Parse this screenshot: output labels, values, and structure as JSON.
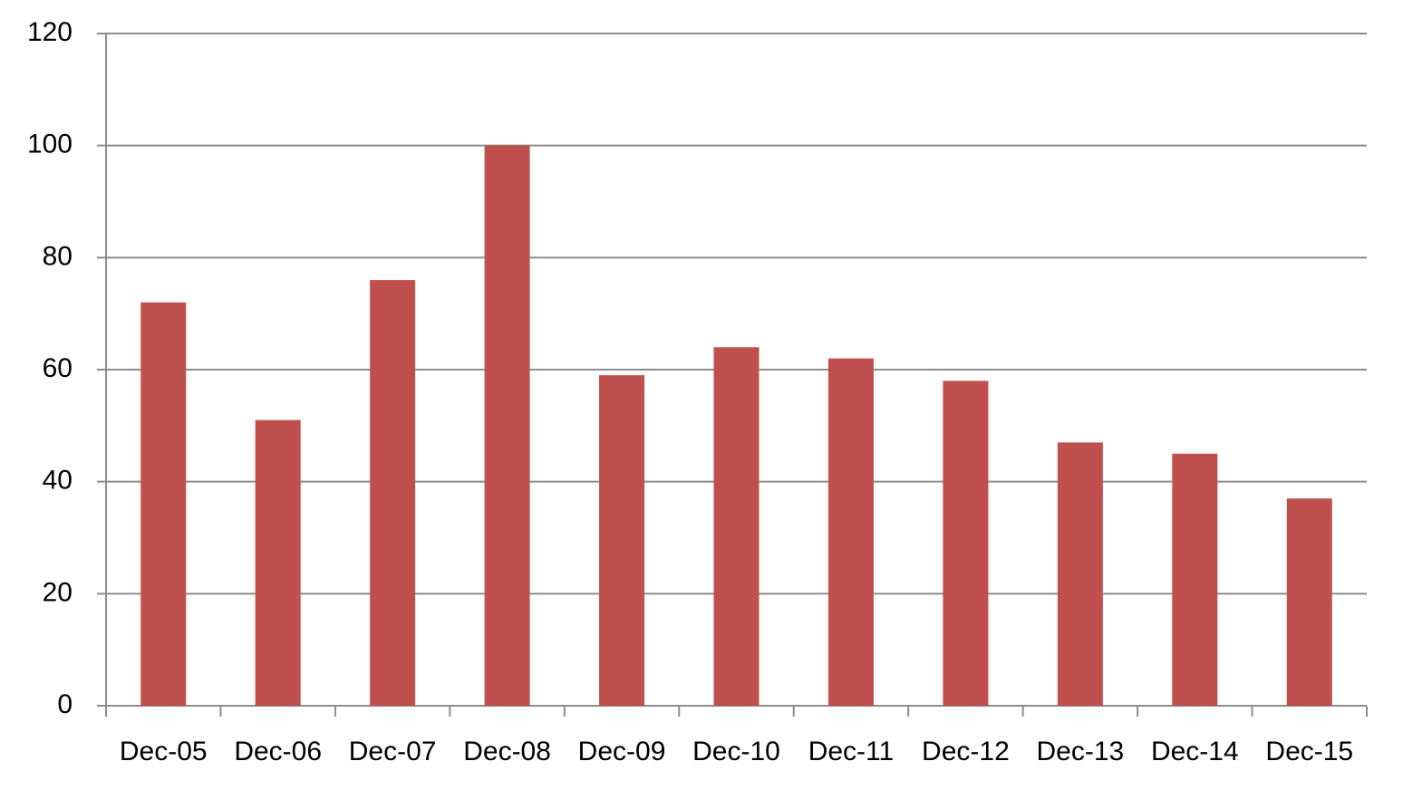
{
  "chart_data": {
    "type": "bar",
    "categories": [
      "Dec-05",
      "Dec-06",
      "Dec-07",
      "Dec-08",
      "Dec-09",
      "Dec-10",
      "Dec-11",
      "Dec-12",
      "Dec-13",
      "Dec-14",
      "Dec-15"
    ],
    "values": [
      72,
      51,
      76,
      100,
      59,
      64,
      62,
      58,
      47,
      45,
      37
    ],
    "color": "#c0504d",
    "ylim": [
      0,
      120
    ],
    "yticks": [
      0,
      20,
      40,
      60,
      80,
      100,
      120
    ],
    "grid": true
  }
}
